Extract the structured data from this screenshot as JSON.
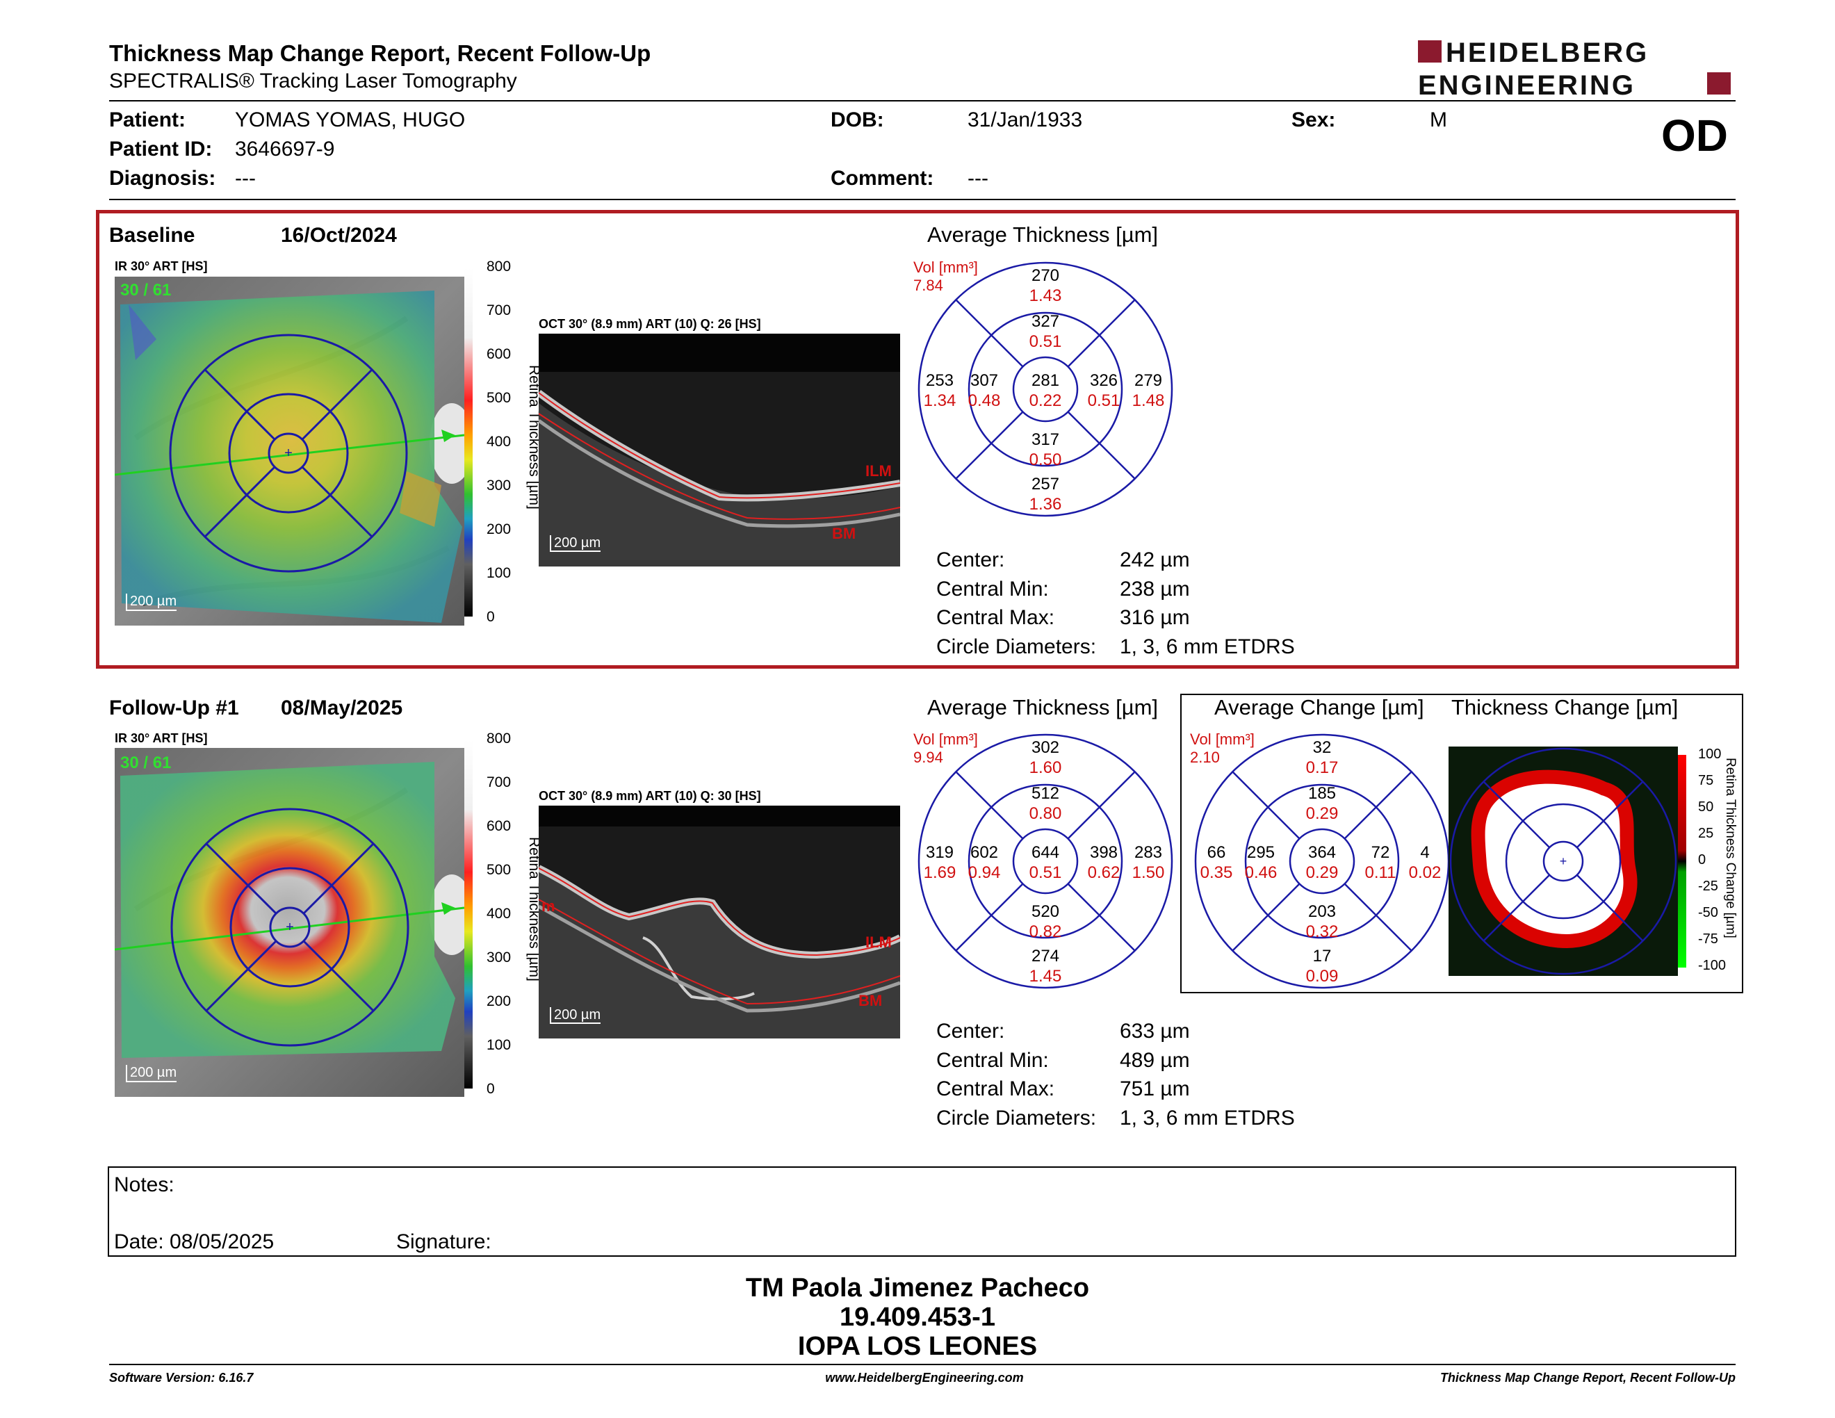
{
  "header": {
    "title": "Thickness Map Change Report, Recent Follow-Up",
    "subtitle": "SPECTRALIS® Tracking Laser Tomography",
    "logo_line1": "HEIDELBERG",
    "logo_line2": "ENGINEERING",
    "eye": "OD"
  },
  "patient": {
    "patient_label": "Patient:",
    "patient_value": "YOMAS YOMAS, HUGO",
    "id_label": "Patient ID:",
    "id_value": "3646697-9",
    "diag_label": "Diagnosis:",
    "diag_value": "---",
    "dob_label": "DOB:",
    "dob_value": "31/Jan/1933",
    "comment_label": "Comment:",
    "comment_value": "---",
    "sex_label": "Sex:",
    "sex_value": "M"
  },
  "baseline": {
    "label": "Baseline",
    "date": "16/Oct/2024",
    "ir_label": "IR 30° ART [HS]",
    "ir_counter": "30 / 61",
    "oct_label": "OCT 30° (8.9 mm) ART (10) Q: 26 [HS]",
    "scale_label": "200 µm",
    "colorbar_ticks": [
      "800",
      "700",
      "600",
      "500",
      "400",
      "300",
      "200",
      "100",
      "0"
    ],
    "colorbar_title": "Retina Thickness [µm]",
    "ilm": "ILM",
    "bm": "BM",
    "avg_title": "Average Thickness [µm]",
    "vol_label": "Vol [mm³]",
    "vol_value": "7.84",
    "grid": {
      "outer_top": [
        "270",
        "1.43"
      ],
      "inner_top": [
        "327",
        "0.51"
      ],
      "outer_left": [
        "253",
        "1.34"
      ],
      "inner_left": [
        "307",
        "0.48"
      ],
      "center": [
        "281",
        "0.22"
      ],
      "inner_right": [
        "326",
        "0.51"
      ],
      "outer_right": [
        "279",
        "1.48"
      ],
      "inner_bottom": [
        "317",
        "0.50"
      ],
      "outer_bottom": [
        "257",
        "1.36"
      ]
    },
    "stats": [
      {
        "label": "Center:",
        "value": "242 µm"
      },
      {
        "label": "Central Min:",
        "value": "238 µm"
      },
      {
        "label": "Central Max:",
        "value": "316 µm"
      },
      {
        "label": "Circle Diameters:",
        "value": "1, 3, 6 mm ETDRS"
      }
    ]
  },
  "followup": {
    "label": "Follow-Up #1",
    "date": "08/May/2025",
    "ir_label": "IR 30° ART [HS]",
    "ir_counter": "30 / 61",
    "oct_label": "OCT 30° (8.9 mm) ART (10) Q: 30 [HS]",
    "scale_label": "200 µm",
    "colorbar_ticks": [
      "800",
      "700",
      "600",
      "500",
      "400",
      "300",
      "200",
      "100",
      "0"
    ],
    "colorbar_title": "Retina Thickness [µm]",
    "ilm": "ILM",
    "bm": "BM",
    "oct_left_mark": "m",
    "avg_title": "Average Thickness [µm]",
    "vol_label": "Vol [mm³]",
    "vol_value": "9.94",
    "grid": {
      "outer_top": [
        "302",
        "1.60"
      ],
      "inner_top": [
        "512",
        "0.80"
      ],
      "outer_left": [
        "319",
        "1.69"
      ],
      "inner_left": [
        "602",
        "0.94"
      ],
      "center": [
        "644",
        "0.51"
      ],
      "inner_right": [
        "398",
        "0.62"
      ],
      "outer_right": [
        "283",
        "1.50"
      ],
      "inner_bottom": [
        "520",
        "0.82"
      ],
      "outer_bottom": [
        "274",
        "1.45"
      ]
    },
    "change_title": "Average Change [µm]",
    "change_vol_label": "Vol [mm³]",
    "change_vol_value": "2.10",
    "change_grid": {
      "outer_top": [
        "32",
        "0.17"
      ],
      "inner_top": [
        "185",
        "0.29"
      ],
      "outer_left": [
        "66",
        "0.35"
      ],
      "inner_left": [
        "295",
        "0.46"
      ],
      "center": [
        "364",
        "0.29"
      ],
      "inner_right": [
        "72",
        "0.11"
      ],
      "outer_right": [
        "4",
        "0.02"
      ],
      "inner_bottom": [
        "203",
        "0.32"
      ],
      "outer_bottom": [
        "17",
        "0.09"
      ]
    },
    "thickness_change_title": "Thickness Change [µm]",
    "change_ticks": [
      "100",
      "75",
      "50",
      "25",
      "0",
      "-25",
      "-50",
      "-75",
      "-100"
    ],
    "change_bar_title": "Retina Thickness Change [µm]",
    "stats": [
      {
        "label": "Center:",
        "value": "633 µm"
      },
      {
        "label": "Central Min:",
        "value": "489 µm"
      },
      {
        "label": "Central Max:",
        "value": "751 µm"
      },
      {
        "label": "Circle Diameters:",
        "value": "1, 3, 6 mm ETDRS"
      }
    ]
  },
  "notes": {
    "notes_label": "Notes:",
    "date_label": "Date: 08/05/2025",
    "signature_label": "Signature:"
  },
  "signer": {
    "name": "TM Paola Jimenez Pacheco",
    "id": "19.409.453-1",
    "org": "IOPA LOS LEONES"
  },
  "footer": {
    "left": "Software Version: 6.16.7",
    "center": "www.HeidelbergEngineering.com",
    "right": "Thickness Map Change Report, Recent Follow-Up"
  },
  "colors": {
    "frame_red": "#b01c22",
    "logo_red": "#8b1a2e",
    "grid_blue": "#1a1aa6",
    "value_red": "#d01010"
  }
}
